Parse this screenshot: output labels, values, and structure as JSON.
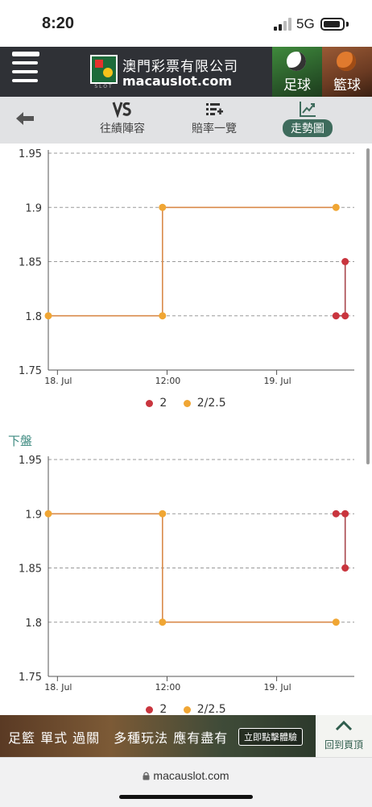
{
  "status_bar": {
    "time": "8:20",
    "network": "5G"
  },
  "header": {
    "logo_cn": "澳門彩票有限公司",
    "logo_en": "macauslot.com",
    "logo_small": "SLOT",
    "sports": [
      {
        "label": "足球",
        "icon": "football-icon"
      },
      {
        "label": "籃球",
        "icon": "basketball-icon"
      }
    ]
  },
  "tabs": [
    {
      "label": "往績陣容",
      "icon": "vs-icon"
    },
    {
      "label": "賠率一覽",
      "icon": "list-add-icon"
    },
    {
      "label": "走勢圖",
      "icon": "trend-icon",
      "active": true
    }
  ],
  "section2_title": "下盤",
  "chart_data": [
    {
      "type": "line",
      "step": true,
      "ylim": [
        1.75,
        1.95
      ],
      "y_ticks": [
        "1.75",
        "1.8",
        "1.85",
        "1.9",
        "1.95"
      ],
      "x_ticks": [
        {
          "label": "18. Jul",
          "x": 0
        },
        {
          "label": "12:00",
          "x": 12
        },
        {
          "label": "19. Jul",
          "x": 24
        }
      ],
      "xlim": [
        -1,
        32.5
      ],
      "grid": true,
      "legend_position": "bottom",
      "series": [
        {
          "name": "2",
          "color": "#c9353e",
          "x": [
            30.5,
            31.5,
            31.5
          ],
          "y": [
            1.8,
            1.8,
            1.85
          ]
        },
        {
          "name": "2/2.5",
          "color": "#f0a634",
          "x": [
            -1,
            11.5,
            11.5,
            30.5
          ],
          "y": [
            1.8,
            1.8,
            1.9,
            1.9
          ]
        }
      ]
    },
    {
      "type": "line",
      "step": true,
      "ylim": [
        1.75,
        1.95
      ],
      "y_ticks": [
        "1.75",
        "1.8",
        "1.85",
        "1.9",
        "1.95"
      ],
      "x_ticks": [
        {
          "label": "18. Jul",
          "x": 0
        },
        {
          "label": "12:00",
          "x": 12
        },
        {
          "label": "19. Jul",
          "x": 24
        }
      ],
      "xlim": [
        -1,
        32.5
      ],
      "grid": true,
      "legend_position": "bottom",
      "series": [
        {
          "name": "2",
          "color": "#c9353e",
          "x": [
            30.5,
            31.5,
            31.5
          ],
          "y": [
            1.9,
            1.9,
            1.85
          ]
        },
        {
          "name": "2/2.5",
          "color": "#f0a634",
          "x": [
            -1,
            11.5,
            11.5,
            30.5
          ],
          "y": [
            1.9,
            1.9,
            1.8,
            1.8
          ]
        }
      ]
    }
  ],
  "banner": {
    "ad_text": "足籃 單式 過關　多種玩法 應有盡有",
    "ad_button": "立即點擊體驗",
    "back_to_top": "回到頁頂"
  },
  "url": "macauslot.com"
}
